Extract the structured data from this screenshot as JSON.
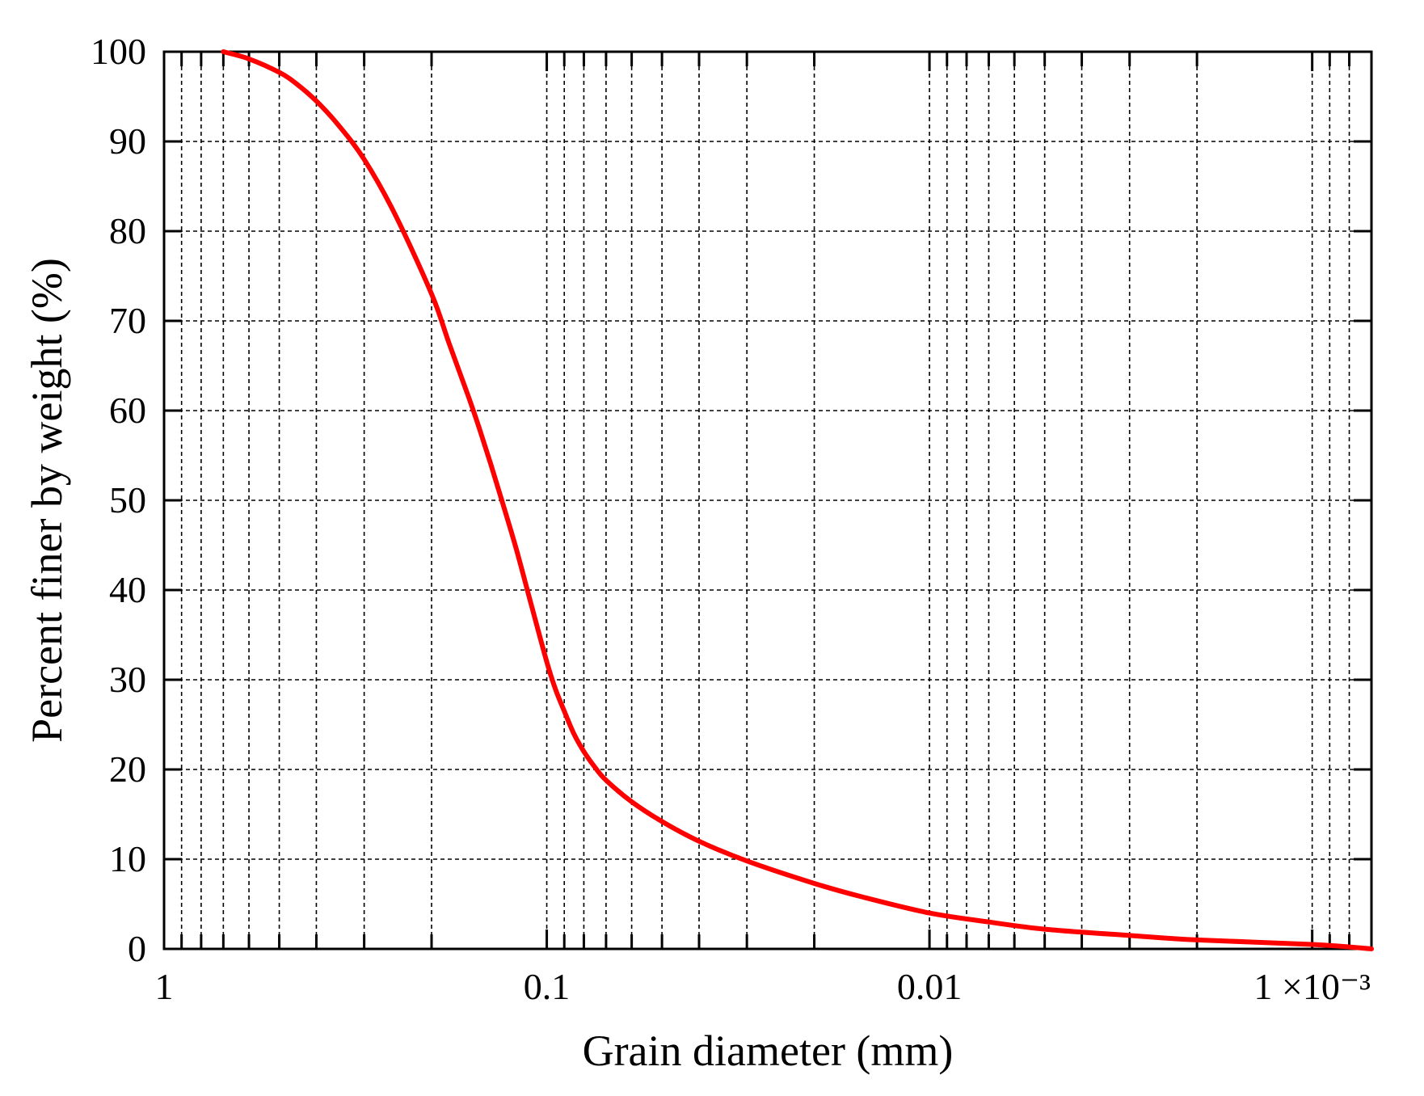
{
  "chart_data": {
    "type": "line",
    "title": "",
    "xlabel": "Grain diameter (mm)",
    "ylabel": "Percent finer by weight (%)",
    "x_scale": "log",
    "x_reversed": true,
    "xlim": [
      1,
      0.0007
    ],
    "ylim": [
      0,
      100
    ],
    "grid": true,
    "legend": "none",
    "x_ticks": [
      {
        "value": 1,
        "label": "1"
      },
      {
        "value": 0.1,
        "label": "0.1"
      },
      {
        "value": 0.01,
        "label": "0.01"
      },
      {
        "value": 0.001,
        "label": "1 ×10⁻³"
      }
    ],
    "y_ticks": [
      {
        "value": 0,
        "label": "0"
      },
      {
        "value": 10,
        "label": "10"
      },
      {
        "value": 20,
        "label": "20"
      },
      {
        "value": 30,
        "label": "30"
      },
      {
        "value": 40,
        "label": "40"
      },
      {
        "value": 50,
        "label": "50"
      },
      {
        "value": 60,
        "label": "60"
      },
      {
        "value": 70,
        "label": "70"
      },
      {
        "value": 80,
        "label": "80"
      },
      {
        "value": 90,
        "label": "90"
      },
      {
        "value": 100,
        "label": "100"
      }
    ],
    "series": [
      {
        "color": "#ff0000",
        "x": [
          0.7,
          0.6,
          0.5,
          0.45,
          0.4,
          0.35,
          0.3,
          0.25,
          0.2,
          0.18,
          0.16,
          0.15,
          0.14,
          0.13,
          0.12,
          0.11,
          0.1,
          0.095,
          0.09,
          0.085,
          0.08,
          0.075,
          0.07,
          0.06,
          0.05,
          0.04,
          0.03,
          0.02,
          0.015,
          0.01,
          0.007,
          0.005,
          0.003,
          0.002,
          0.001,
          0.0007
        ],
        "y": [
          100,
          99.2,
          97.7,
          96.4,
          94.5,
          91.8,
          88,
          82,
          73,
          67.5,
          61.5,
          58,
          54,
          49.5,
          44.5,
          38.5,
          32,
          29,
          26.5,
          24,
          22,
          20.3,
          18.8,
          16.4,
          14.2,
          12,
          9.8,
          7.3,
          5.8,
          4,
          3,
          2.2,
          1.5,
          1,
          0.5,
          0
        ]
      }
    ]
  }
}
